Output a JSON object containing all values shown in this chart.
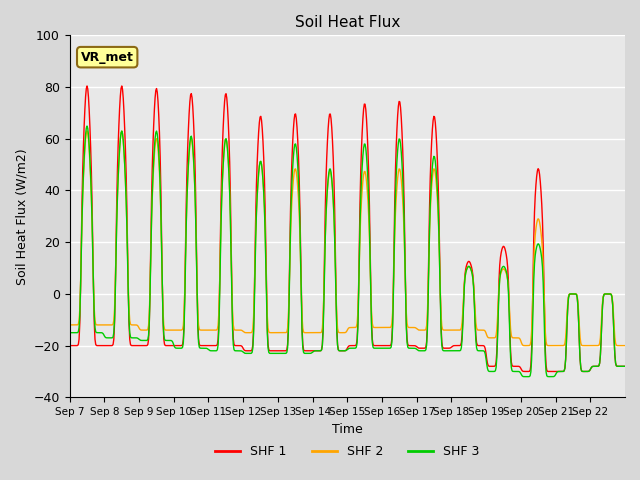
{
  "title": "Soil Heat Flux",
  "ylabel": "Soil Heat Flux (W/m2)",
  "xlabel": "Time",
  "ylim": [
    -40,
    100
  ],
  "xtick_labels": [
    "Sep 7",
    "Sep 8",
    "Sep 9",
    "Sep 10",
    "Sep 11",
    "Sep 12",
    "Sep 13",
    "Sep 14",
    "Sep 15",
    "Sep 16",
    "Sep 17",
    "Sep 18",
    "Sep 19",
    "Sep 20",
    "Sep 21",
    "Sep 22"
  ],
  "legend_labels": [
    "SHF 1",
    "SHF 2",
    "SHF 3"
  ],
  "colors": [
    "#ff0000",
    "#ffa500",
    "#00cc00"
  ],
  "vr_met_box_color": "#ffff99",
  "vr_met_edge_color": "#8B6914",
  "axes_bg": "#e8e8e8",
  "yticks": [
    -40,
    -20,
    0,
    20,
    40,
    60,
    80,
    100
  ],
  "shf1_peaks": [
    83,
    83,
    82,
    80,
    80,
    71,
    72,
    72,
    76,
    77,
    71,
    13,
    19,
    50,
    0,
    0
  ],
  "shf1_night": [
    -20,
    -20,
    -20,
    -20,
    -20,
    -22,
    -22,
    -22,
    -20,
    -20,
    -21,
    -20,
    -28,
    -30,
    -30,
    -28
  ],
  "shf2_peaks": [
    65,
    65,
    62,
    62,
    62,
    53,
    50,
    49,
    49,
    50,
    50,
    11,
    10,
    30,
    0,
    0
  ],
  "shf2_night": [
    -12,
    -12,
    -14,
    -14,
    -14,
    -15,
    -15,
    -15,
    -13,
    -13,
    -14,
    -14,
    -17,
    -20,
    -20,
    -20
  ],
  "shf3_peaks": [
    67,
    65,
    65,
    63,
    62,
    53,
    60,
    50,
    60,
    62,
    55,
    11,
    11,
    20,
    0,
    0
  ],
  "shf3_night": [
    -15,
    -17,
    -18,
    -21,
    -22,
    -23,
    -23,
    -22,
    -21,
    -21,
    -22,
    -22,
    -30,
    -32,
    -30,
    -28
  ]
}
